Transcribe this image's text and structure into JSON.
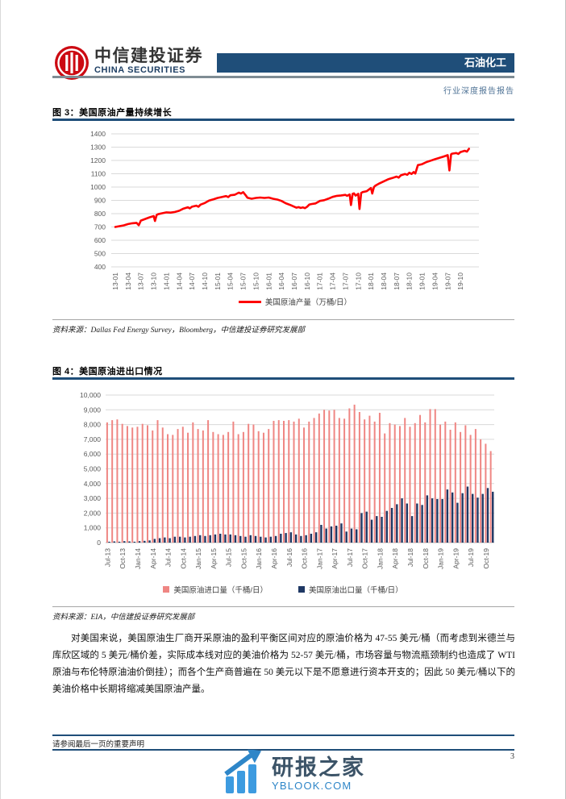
{
  "header": {
    "brand_cn": "中信建投证券",
    "brand_en": "CHINA SECURITIES",
    "sector_tag": "石油化工",
    "report_type": "行业深度报告报告"
  },
  "figure3": {
    "title": "图 3：美国原油产量持续增长",
    "source": "资料来源：Dallas Fed Energy Survey，Bloomberg，中信建投证券研究发展部"
  },
  "figure4": {
    "title": "图 4：美国原油进出口情况",
    "source": "资料来源：EIA，中信建投证券研究发展部"
  },
  "body_paragraph": "对美国来说，美国原油生厂商开采原油的盈利平衡区间对应的原油价格为 47-55 美元/桶（而考虑到米德兰与库欣区域的 5 美元/桶价差，实际成本线对应的美油价格为 52-57 美元/桶，市场容量与物流瓶颈制约也造成了 WTI 原油与布伦特原油油价倒挂）；而各个生产商普遍在 50 美元以下是不愿意进行资本开支的；因此 50 美元/桶以下的美油价格中长期将缩减美国原油产量。",
  "footer": {
    "disclaimer": "请参阅最后一页的重要声明",
    "page_number": "3"
  },
  "watermark": {
    "name_cn": "研报之家",
    "site": "YBLOOK.COM"
  },
  "chart_data": [
    {
      "type": "line",
      "title": "美国原油产量持续增长",
      "series_name": "美国原油产量（万桶/日）",
      "color": "#FE0000",
      "ylim": [
        400,
        1400
      ],
      "ytick_step": 100,
      "grid": true,
      "legend_position": "bottom",
      "x_unit": "year-month (weekly data)",
      "x_tick_labels": [
        "13-01",
        "13-04",
        "13-07",
        "13-10",
        "14-01",
        "14-04",
        "14-07",
        "14-10",
        "15-01",
        "15-04",
        "15-07",
        "15-10",
        "16-01",
        "16-04",
        "16-07",
        "16-10",
        "17-01",
        "17-04",
        "17-07",
        "17-10",
        "18-01",
        "18-04",
        "18-07",
        "18-10",
        "19-01",
        "19-04",
        "19-07",
        "19-10"
      ],
      "months_per_tick": 3,
      "x_total_months": 84,
      "points": [
        [
          0,
          700
        ],
        [
          1,
          706
        ],
        [
          2,
          712
        ],
        [
          3,
          722
        ],
        [
          4,
          728
        ],
        [
          5,
          731
        ],
        [
          5.5,
          713
        ],
        [
          6,
          748
        ],
        [
          7,
          760
        ],
        [
          8,
          772
        ],
        [
          9,
          782
        ],
        [
          9.3,
          745
        ],
        [
          9.7,
          790
        ],
        [
          10,
          796
        ],
        [
          11,
          803
        ],
        [
          12,
          810
        ],
        [
          13,
          808
        ],
        [
          14,
          813
        ],
        [
          15,
          822
        ],
        [
          16,
          838
        ],
        [
          17,
          848
        ],
        [
          17.5,
          840
        ],
        [
          18,
          852
        ],
        [
          19,
          860
        ],
        [
          19.5,
          852
        ],
        [
          20,
          868
        ],
        [
          21,
          880
        ],
        [
          22,
          898
        ],
        [
          23,
          908
        ],
        [
          24,
          918
        ],
        [
          25,
          925
        ],
        [
          26,
          932
        ],
        [
          26.5,
          925
        ],
        [
          27,
          938
        ],
        [
          28,
          942
        ],
        [
          29,
          958
        ],
        [
          29.5,
          951
        ],
        [
          30,
          962
        ],
        [
          30.6,
          938
        ],
        [
          31,
          920
        ],
        [
          32,
          912
        ],
        [
          33,
          918
        ],
        [
          34,
          921
        ],
        [
          35,
          918
        ],
        [
          36,
          921
        ],
        [
          37,
          912
        ],
        [
          38,
          906
        ],
        [
          39,
          896
        ],
        [
          40,
          878
        ],
        [
          41,
          866
        ],
        [
          42,
          852
        ],
        [
          42.5,
          845
        ],
        [
          43,
          849
        ],
        [
          43.5,
          843
        ],
        [
          44,
          847
        ],
        [
          44.5,
          841
        ],
        [
          45,
          852
        ],
        [
          45.5,
          868
        ],
        [
          46,
          872
        ],
        [
          47,
          877
        ],
        [
          48,
          896
        ],
        [
          49,
          901
        ],
        [
          50,
          913
        ],
        [
          51,
          926
        ],
        [
          52,
          934
        ],
        [
          53,
          937
        ],
        [
          54,
          941
        ],
        [
          54.4,
          934
        ],
        [
          55,
          944
        ],
        [
          55.3,
          865
        ],
        [
          55.7,
          949
        ],
        [
          56,
          953
        ],
        [
          56.4,
          936
        ],
        [
          57,
          949
        ],
        [
          57.3,
          835
        ],
        [
          57.7,
          956
        ],
        [
          58,
          962
        ],
        [
          59,
          969
        ],
        [
          60,
          993
        ],
        [
          60.3,
          951
        ],
        [
          60.7,
          1000
        ],
        [
          61,
          1010
        ],
        [
          62,
          1028
        ],
        [
          63,
          1043
        ],
        [
          64,
          1058
        ],
        [
          65,
          1068
        ],
        [
          66,
          1079
        ],
        [
          66.5,
          1071
        ],
        [
          67,
          1088
        ],
        [
          68,
          1098
        ],
        [
          68.5,
          1092
        ],
        [
          69,
          1108
        ],
        [
          69.5,
          1098
        ],
        [
          70,
          1113
        ],
        [
          70.4,
          1101
        ],
        [
          71,
          1165
        ],
        [
          72,
          1172
        ],
        [
          73,
          1188
        ],
        [
          74,
          1198
        ],
        [
          75,
          1209
        ],
        [
          76,
          1219
        ],
        [
          77,
          1229
        ],
        [
          78,
          1240
        ],
        [
          78.4,
          1125
        ],
        [
          78.8,
          1246
        ],
        [
          79,
          1251
        ],
        [
          80,
          1256
        ],
        [
          80.5,
          1249
        ],
        [
          81,
          1263
        ],
        [
          82,
          1273
        ],
        [
          82.5,
          1266
        ],
        [
          83,
          1288
        ]
      ]
    },
    {
      "type": "bar",
      "title": "美国原油进出口情况",
      "ylim": [
        0,
        10000
      ],
      "ytick_step": 1000,
      "grid": true,
      "legend_position": "bottom",
      "x_tick_labels": [
        "Jul-13",
        "Oct-13",
        "Jan-14",
        "Apr-14",
        "Jul-14",
        "Oct-14",
        "Jan-15",
        "Apr-15",
        "Jul-15",
        "Oct-15",
        "Jan-16",
        "Apr-16",
        "Jul-16",
        "Oct-16",
        "Jan-17",
        "Apr-17",
        "Jul-17",
        "Oct-17",
        "Jan-18",
        "Apr-18",
        "Jul-18",
        "Oct-18",
        "Jan-19",
        "Apr-19",
        "Jul-19",
        "Oct-19"
      ],
      "months_per_tick": 3,
      "series": [
        {
          "name": "美国原油进口量（千桶/日）",
          "color": "#EF8683",
          "values": [
            8150,
            8300,
            8350,
            8050,
            7900,
            7800,
            7850,
            8050,
            7950,
            7600,
            8300,
            7800,
            7350,
            7300,
            7700,
            7850,
            7450,
            8150,
            7700,
            7600,
            8300,
            7500,
            7350,
            7300,
            7500,
            8200,
            7350,
            7500,
            8050,
            8000,
            7550,
            7450,
            7700,
            8250,
            8300,
            8250,
            8300,
            8200,
            8400,
            7800,
            8200,
            8450,
            8750,
            9000,
            8950,
            9000,
            8450,
            8400,
            9100,
            9350,
            8850,
            8350,
            8600,
            8200,
            8800,
            7400,
            8100,
            8000,
            7900,
            8450,
            7850,
            8100,
            8650,
            8150,
            9050,
            9050,
            8000,
            8200,
            7650,
            8150,
            7500,
            7950,
            7300,
            7700,
            7000,
            6700,
            6200
          ]
        },
        {
          "name": "美国原油出口量（千桶/日）",
          "color": "#1F3864",
          "values": [
            60,
            80,
            60,
            100,
            80,
            60,
            100,
            120,
            150,
            250,
            300,
            350,
            300,
            400,
            400,
            350,
            400,
            450,
            500,
            450,
            500,
            550,
            600,
            550,
            550,
            500,
            450,
            400,
            500,
            450,
            400,
            350,
            400,
            450,
            600,
            650,
            700,
            550,
            450,
            500,
            600,
            700,
            1200,
            950,
            1100,
            1150,
            1300,
            750,
            950,
            900,
            2000,
            2100,
            1550,
            1800,
            1750,
            2150,
            2350,
            2600,
            3000,
            2650,
            1800,
            2650,
            2550,
            3200,
            3000,
            2950,
            2950,
            3600,
            3400,
            2700,
            3350,
            3800,
            3300,
            3050,
            3300,
            3700,
            3450
          ]
        }
      ]
    }
  ]
}
